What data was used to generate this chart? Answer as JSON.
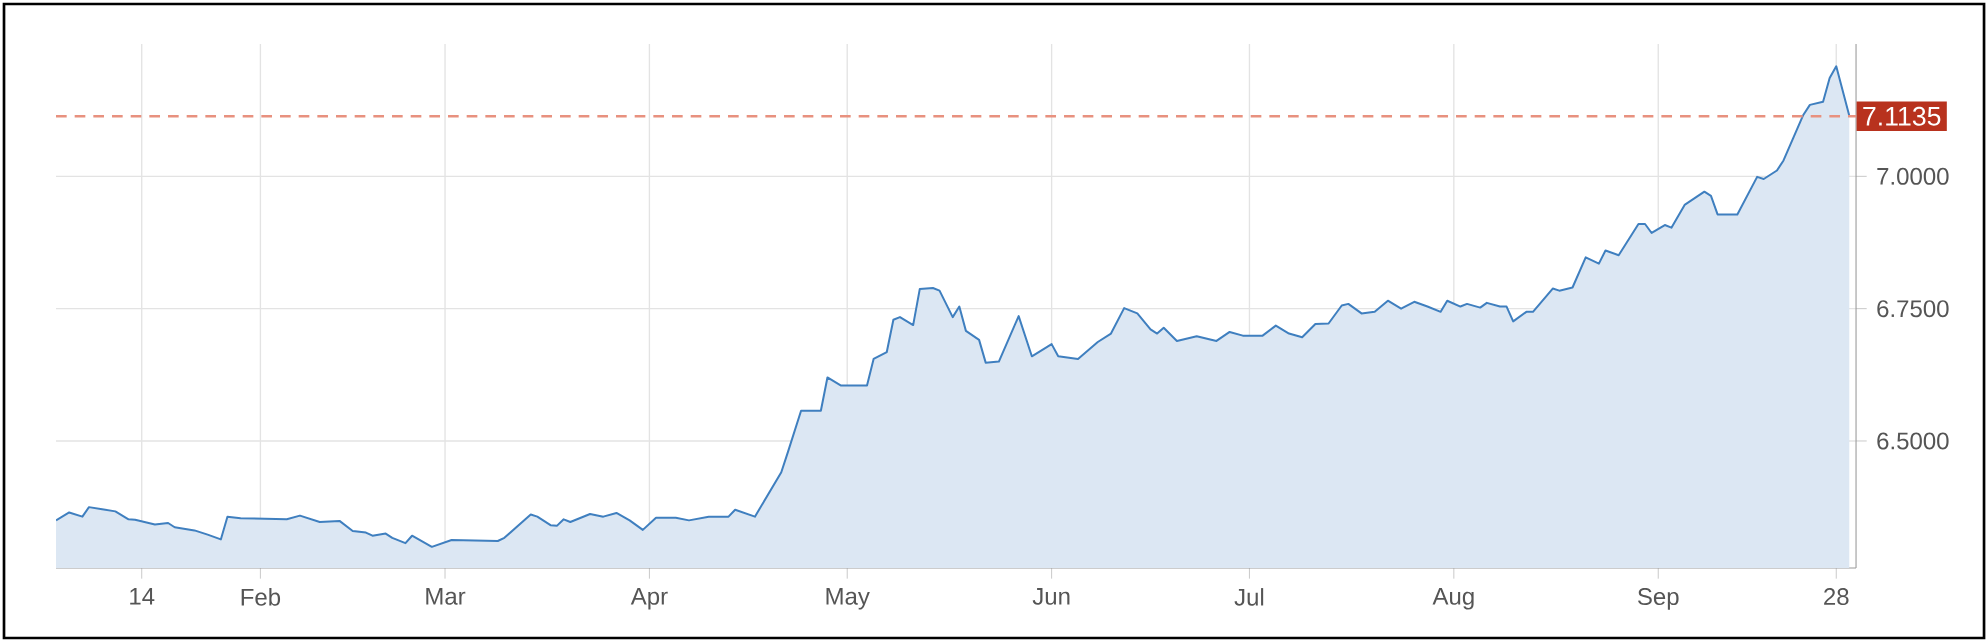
{
  "chart_data": {
    "type": "area",
    "color": "#3f7fbf",
    "x": [
      "--01-01",
      "--01-03",
      "--01-05",
      "--01-06",
      "--01-08",
      "--01-10",
      "--01-12",
      "--01-13",
      "--01-16",
      "--01-18",
      "--01-19",
      "--01-22",
      "--01-24",
      "--01-26",
      "--01-27",
      "--01-29",
      "--02-05",
      "--02-07",
      "--02-10",
      "--02-13",
      "--02-15",
      "--02-17",
      "--02-18",
      "--02-20",
      "--02-21",
      "--02-23",
      "--02-24",
      "--02-27",
      "--03-02",
      "--03-09",
      "--03-10",
      "--03-14",
      "--03-15",
      "--03-17",
      "--03-18",
      "--03-19",
      "--03-20",
      "--03-23",
      "--03-25",
      "--03-27",
      "--03-29",
      "--03-31",
      "--04-02",
      "--04-05",
      "--04-07",
      "--04-10",
      "--04-13",
      "--04-14",
      "--04-17",
      "--04-21",
      "--04-22",
      "--04-24",
      "--04-27",
      "--04-28",
      "--04-30",
      "--05-04",
      "--05-05",
      "--05-07",
      "--05-08",
      "--05-09",
      "--05-11",
      "--05-12",
      "--05-14",
      "--05-15",
      "--05-17",
      "--05-18",
      "--05-19",
      "--05-21",
      "--05-22",
      "--05-24",
      "--05-27",
      "--05-29",
      "--06-01",
      "--06-02",
      "--06-05",
      "--06-08",
      "--06-10",
      "--06-12",
      "--06-14",
      "--06-16",
      "--06-17",
      "--06-18",
      "--06-20",
      "--06-23",
      "--06-26",
      "--06-28",
      "--06-30",
      "--07-03",
      "--07-05",
      "--07-07",
      "--07-09",
      "--07-11",
      "--07-13",
      "--07-15",
      "--07-16",
      "--07-18",
      "--07-20",
      "--07-22",
      "--07-24",
      "--07-26",
      "--07-28",
      "--07-30",
      "--07-31",
      "--08-02",
      "--08-03",
      "--08-05",
      "--08-06",
      "--08-08",
      "--08-09",
      "--08-10",
      "--08-12",
      "--08-13",
      "--08-16",
      "--08-17",
      "--08-19",
      "--08-21",
      "--08-23",
      "--08-24",
      "--08-26",
      "--08-29",
      "--08-30",
      "--08-31",
      "--09-02",
      "--09-03",
      "--09-05",
      "--09-08",
      "--09-09",
      "--09-10",
      "--09-13",
      "--09-16",
      "--09-17",
      "--09-19",
      "--09-20",
      "--09-23",
      "--09-24",
      "--09-26",
      "--09-27",
      "--09-28",
      "--09-30"
    ],
    "values": [
      6.35,
      6.365,
      6.357,
      6.375,
      6.371,
      6.367,
      6.352,
      6.351,
      6.342,
      6.345,
      6.337,
      6.331,
      6.323,
      6.314,
      6.357,
      6.354,
      6.352,
      6.359,
      6.347,
      6.349,
      6.33,
      6.327,
      6.321,
      6.325,
      6.317,
      6.307,
      6.321,
      6.3,
      6.313,
      6.311,
      6.317,
      6.361,
      6.357,
      6.341,
      6.34,
      6.352,
      6.347,
      6.362,
      6.357,
      6.364,
      6.35,
      6.332,
      6.355,
      6.355,
      6.35,
      6.357,
      6.357,
      6.37,
      6.357,
      6.441,
      6.479,
      6.557,
      6.557,
      6.62,
      6.605,
      6.605,
      6.655,
      6.668,
      6.729,
      6.734,
      6.719,
      6.787,
      6.789,
      6.784,
      6.734,
      6.754,
      6.708,
      6.691,
      6.648,
      6.65,
      6.736,
      6.66,
      6.683,
      6.66,
      6.655,
      6.687,
      6.703,
      6.751,
      6.741,
      6.711,
      6.703,
      6.714,
      6.689,
      6.698,
      6.689,
      6.706,
      6.699,
      6.699,
      6.718,
      6.703,
      6.696,
      6.721,
      6.722,
      6.756,
      6.759,
      6.741,
      6.744,
      6.765,
      6.75,
      6.763,
      6.754,
      6.744,
      6.765,
      6.754,
      6.759,
      6.752,
      6.761,
      6.754,
      6.754,
      6.726,
      6.744,
      6.744,
      6.788,
      6.784,
      6.79,
      6.847,
      6.835,
      6.86,
      6.851,
      6.91,
      6.91,
      6.893,
      6.908,
      6.903,
      6.946,
      6.971,
      6.963,
      6.928,
      6.928,
      6.999,
      6.995,
      7.011,
      7.03,
      7.116,
      7.135,
      7.141,
      7.186,
      7.208,
      7.1135
    ],
    "xlim": [
      "--01-01",
      "--10-01"
    ],
    "xticks": [
      {
        "value": "--01-14",
        "label": "14"
      },
      {
        "value": "--02-01",
        "label": "Feb"
      },
      {
        "value": "--03-01",
        "label": "Mar"
      },
      {
        "value": "--04-01",
        "label": "Apr"
      },
      {
        "value": "--05-01",
        "label": "May"
      },
      {
        "value": "--06-01",
        "label": "Jun"
      },
      {
        "value": "--07-01",
        "label": "Jul"
      },
      {
        "value": "--08-01",
        "label": "Aug"
      },
      {
        "value": "--09-01",
        "label": "Sep"
      },
      {
        "value": "--09-28",
        "label": "28"
      }
    ],
    "ylim": [
      6.26,
      7.25
    ],
    "yticks": [
      {
        "value": 6.5,
        "label": "6.5000"
      },
      {
        "value": 6.75,
        "label": "6.7500"
      },
      {
        "value": 7.0,
        "label": "7.0000"
      }
    ],
    "grid": true,
    "ref_lines": [
      {
        "axis": "y",
        "value": 7.1135,
        "label": "7.1135",
        "color": "#e8917f",
        "line_style": "dashed"
      }
    ]
  }
}
